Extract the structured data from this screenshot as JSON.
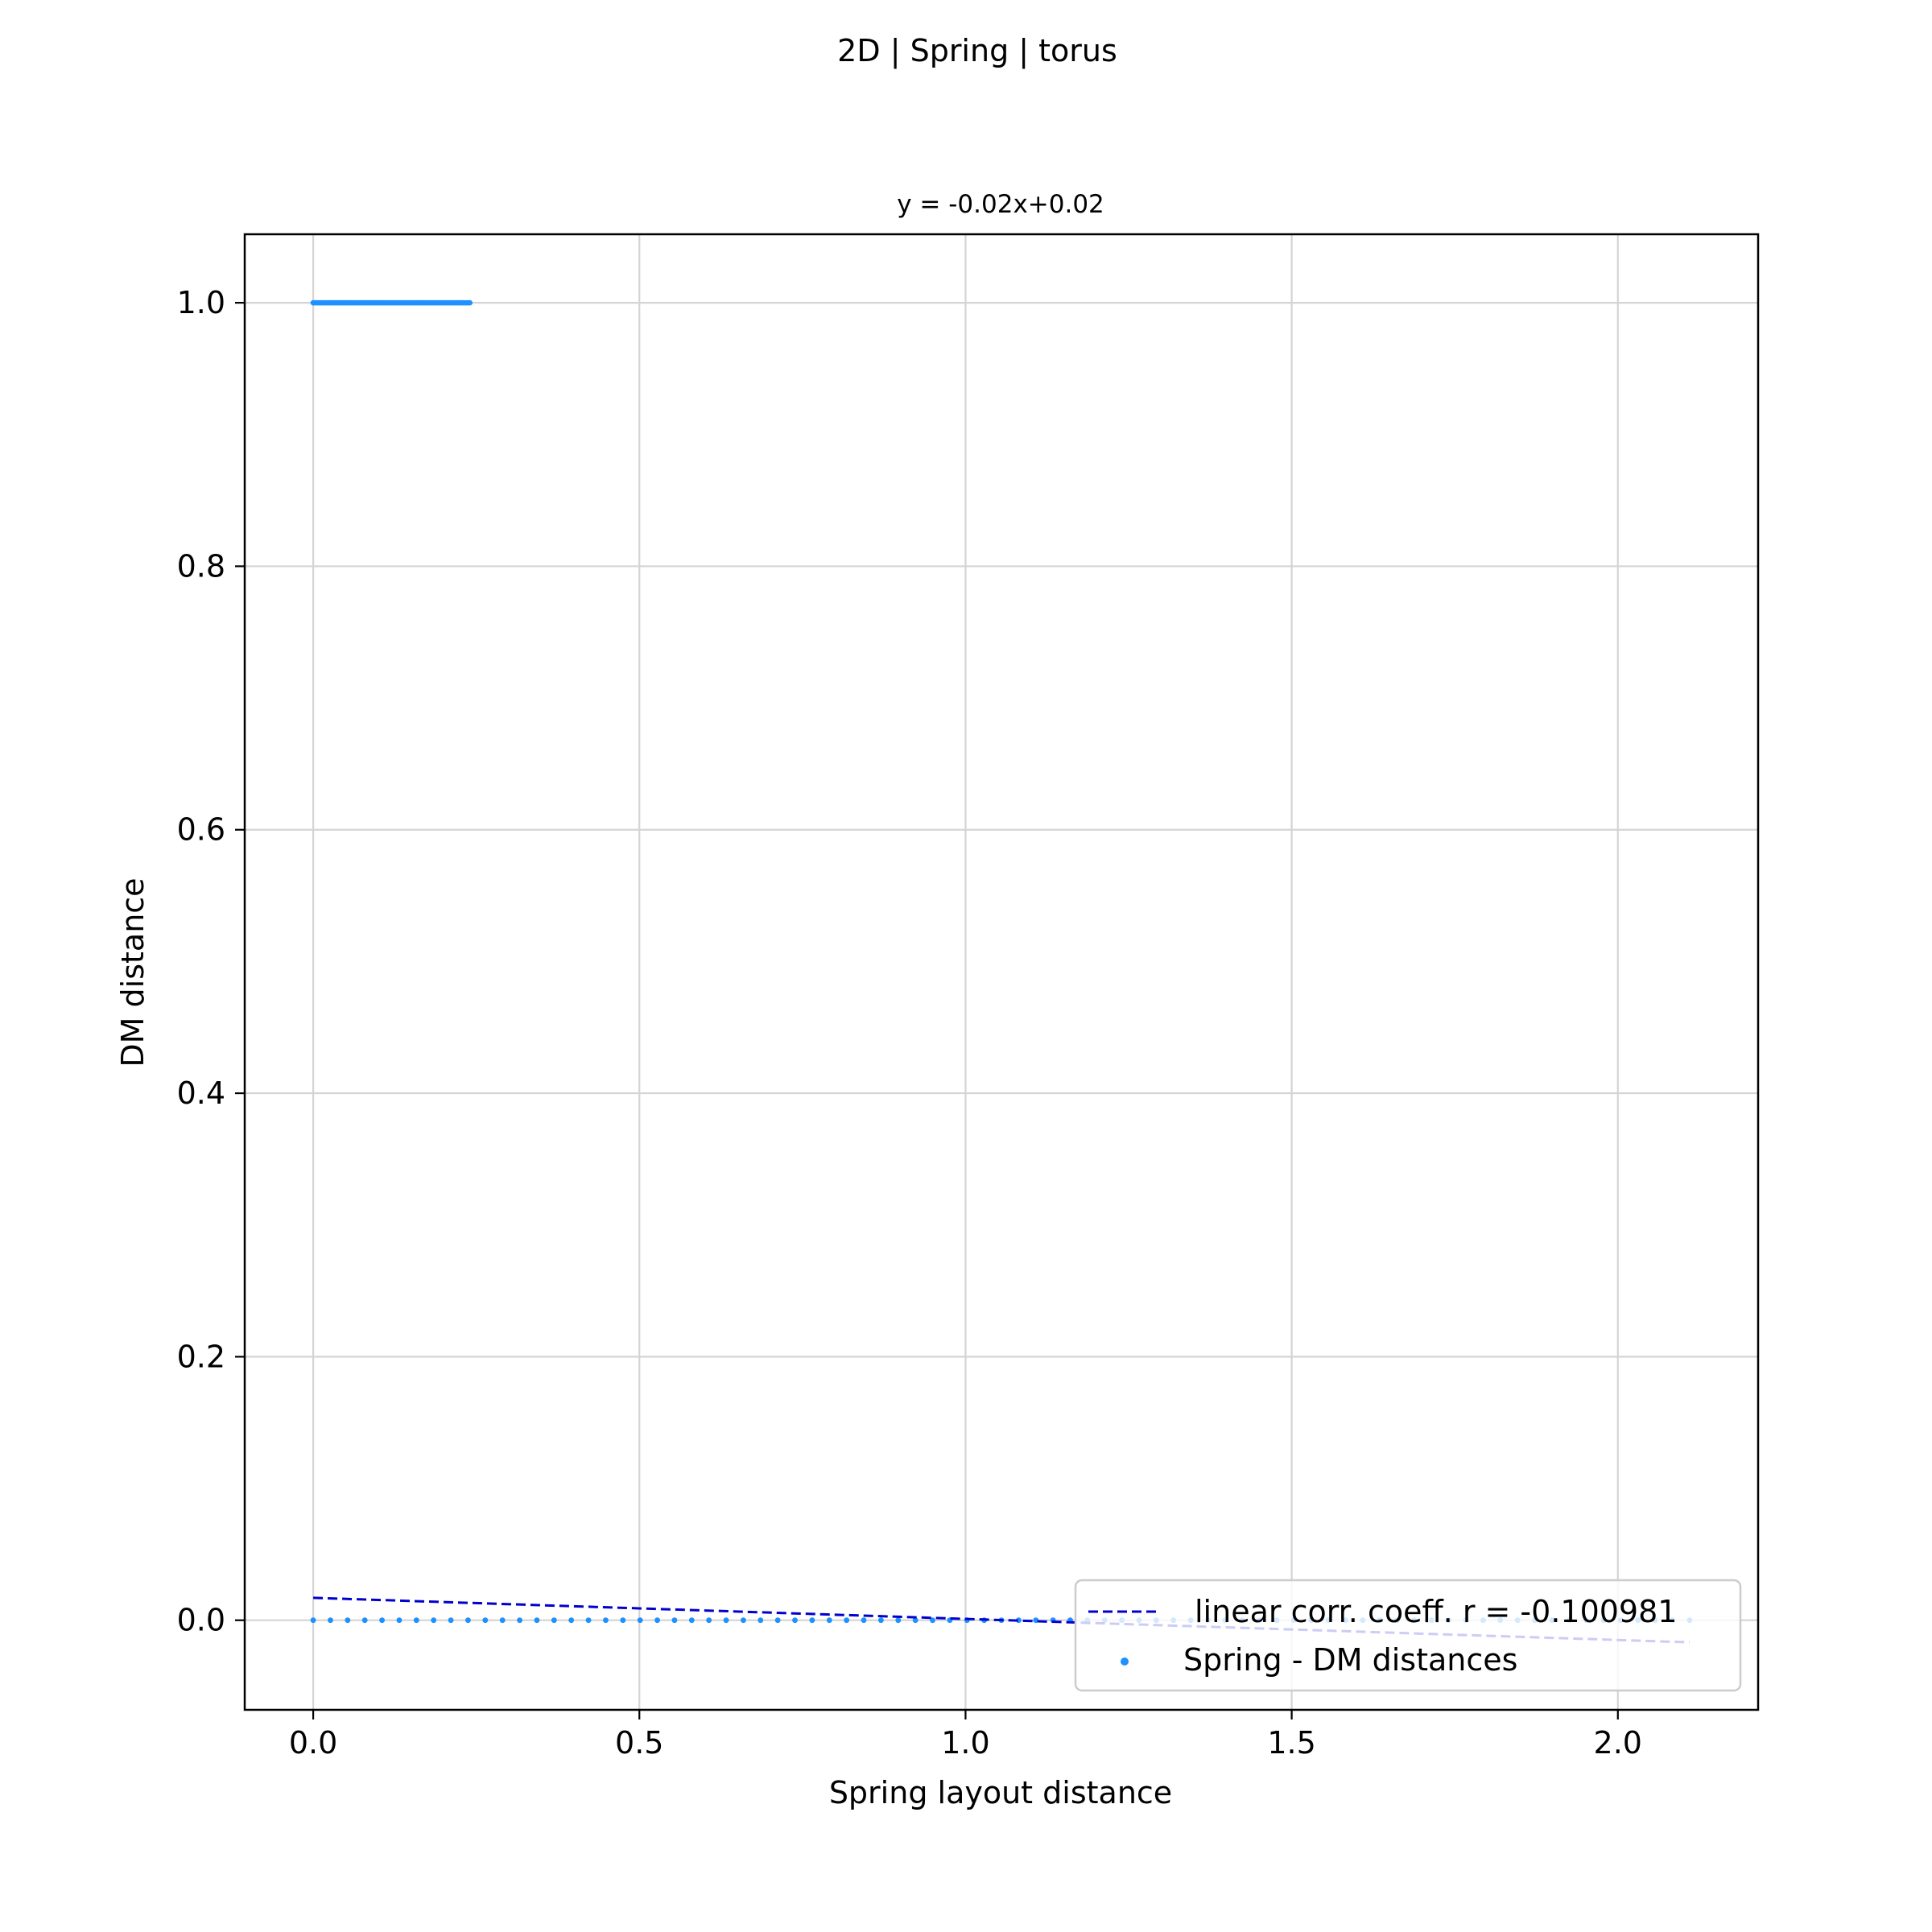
{
  "figure": {
    "suptitle": "2D | Spring | torus"
  },
  "chart_data": {
    "type": "scatter",
    "title": "y = -0.02x+0.02",
    "xlabel": "Spring layout distance",
    "ylabel": "DM distance",
    "xlim": [
      -0.105,
      2.215
    ],
    "ylim": [
      -0.068,
      1.052
    ],
    "xticks": [
      0.0,
      0.5,
      1.0,
      1.5,
      2.0
    ],
    "xtick_labels": [
      "0.0",
      "0.5",
      "1.0",
      "1.5",
      "2.0"
    ],
    "yticks": [
      0.0,
      0.2,
      0.4,
      0.6,
      0.8,
      1.0
    ],
    "ytick_labels": [
      "0.0",
      "0.2",
      "0.4",
      "0.6",
      "0.8",
      "1.0"
    ],
    "grid": true,
    "legend_position": "lower-right",
    "series": [
      {
        "name": "Spring - DM distances",
        "kind": "scatter",
        "color": "#1e90ff",
        "clusters": [
          {
            "y": 1.0,
            "x_range": [
              0.0,
              0.24
            ]
          },
          {
            "y": 0.0,
            "x_range": [
              0.0,
              2.11
            ]
          }
        ]
      },
      {
        "name": "linear corr. coeff. r = -0.100981",
        "kind": "line",
        "style": "dashed",
        "color": "#0000cd",
        "slope": -0.016,
        "intercept": 0.017,
        "x_range": [
          0.0,
          2.11
        ]
      }
    ]
  }
}
